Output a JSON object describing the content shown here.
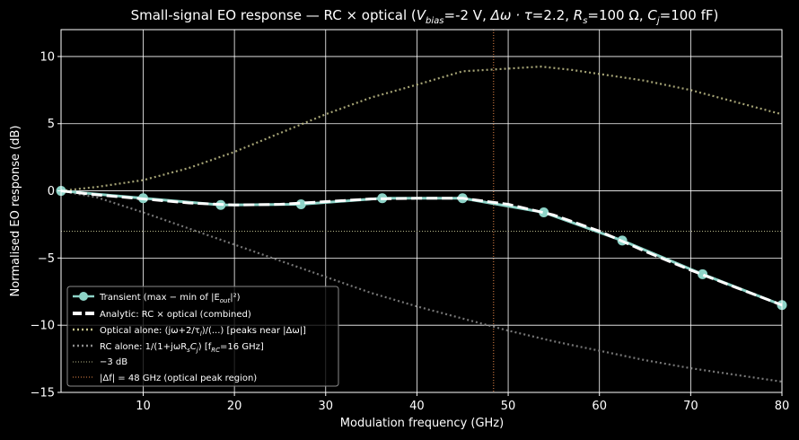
{
  "chart_data": {
    "type": "line",
    "title": "Small-signal EO response — RC × optical  (V_bias=-2 V, Δω·τ=2.2, R_s=100 Ω, C_j=100 fF)",
    "title_parts": {
      "lead": "Small-signal EO response — RC × optical  (",
      "v": "V",
      "v_sub": "bias",
      "v_val": "=-2 V, ",
      "dw": "Δω · τ",
      "dw_val": "=2.2, ",
      "r": "R",
      "r_sub": "s",
      "r_val": "=100 Ω, ",
      "c": "C",
      "c_sub": "j",
      "c_val": "=100 fF)"
    },
    "xlabel": "Modulation frequency (GHz)",
    "ylabel": "Normalised EO response (dB)",
    "xlim": [
      1,
      80
    ],
    "ylim": [
      -15,
      12
    ],
    "xticks": [
      10,
      20,
      30,
      40,
      50,
      60,
      70,
      80
    ],
    "yticks": [
      10,
      5,
      0,
      -5,
      -10,
      -15
    ],
    "ytick_labels": [
      "10",
      "5",
      "0",
      "−5",
      "−10",
      "−15"
    ],
    "grid": true,
    "legend_position": "lower-left",
    "series": [
      {
        "name": "Transient (max − min of |E_out|²)",
        "legend_text": "Transient (max − min of |E",
        "legend_sub": "out",
        "legend_tail": "|²)",
        "kind": "markers-line",
        "color": "#8dd3c7",
        "x": [
          1,
          10,
          18.5,
          27.3,
          36.2,
          45,
          53.9,
          62.5,
          71.3,
          80
        ],
        "y": [
          0,
          -0.55,
          -1.05,
          -1.0,
          -0.55,
          -0.55,
          -1.6,
          -3.7,
          -6.2,
          -8.5
        ]
      },
      {
        "name": "Analytic: RC × optical (combined)",
        "legend_text": "Analytic: RC × optical (combined)",
        "kind": "dashed",
        "color": "#ffffff",
        "x": [
          1,
          5,
          10,
          15,
          20,
          25,
          30,
          35,
          40,
          45,
          50,
          55,
          60,
          65,
          70,
          75,
          80
        ],
        "y": [
          0,
          -0.3,
          -0.6,
          -0.9,
          -1.05,
          -1.0,
          -0.8,
          -0.6,
          -0.55,
          -0.55,
          -1.0,
          -1.8,
          -3.0,
          -4.5,
          -5.9,
          -7.2,
          -8.5
        ]
      },
      {
        "name": "Optical alone: (jω+2/τ_l)/(...)  [peaks near |Δω|]",
        "legend_text": "Optical alone: (jω+2/τ",
        "legend_sub": "l",
        "legend_tail": ")/(...)  [peaks near |Δω|]",
        "kind": "dotted",
        "color": "#c2c08a",
        "x": [
          1,
          5,
          10,
          15,
          20,
          25,
          30,
          35,
          40,
          45,
          50,
          53.6,
          57,
          60,
          65,
          70,
          75,
          80
        ],
        "y": [
          0,
          0.3,
          0.8,
          1.7,
          2.9,
          4.3,
          5.7,
          6.95,
          7.9,
          8.9,
          9.1,
          9.25,
          9.0,
          8.7,
          8.2,
          7.5,
          6.6,
          5.7
        ]
      },
      {
        "name": "RC alone: 1/(1+jωR_sC_j)  [f_RC=16 GHz]",
        "legend_text": "RC alone: 1/(1+jωR",
        "legend_sub": "s",
        "legend_mid": "C",
        "legend_sub2": "j",
        "legend_tail": ")  [f",
        "legend_sub3": "RC",
        "legend_tail2": "=16 GHz]",
        "kind": "dotted",
        "color": "#8c8c8c",
        "x": [
          1,
          5,
          10,
          15,
          20,
          25,
          30,
          35,
          40,
          45,
          50,
          55,
          60,
          65,
          70,
          75,
          80
        ],
        "y": [
          0,
          -0.5,
          -1.6,
          -2.8,
          -4.0,
          -5.2,
          -6.4,
          -7.6,
          -8.6,
          -9.5,
          -10.4,
          -11.2,
          -11.9,
          -12.6,
          -13.2,
          -13.7,
          -14.2
        ]
      }
    ],
    "reference_lines": [
      {
        "name": "−3 dB",
        "legend_text": "−3 dB",
        "orientation": "horizontal",
        "value": -3,
        "color": "#b7b88a"
      },
      {
        "name": "|Δf| = 48 GHz (optical peak region)",
        "legend_text": "|Δf| = 48 GHz (optical peak region)",
        "orientation": "vertical",
        "value": 48.4,
        "color": "#e8894a"
      }
    ]
  }
}
